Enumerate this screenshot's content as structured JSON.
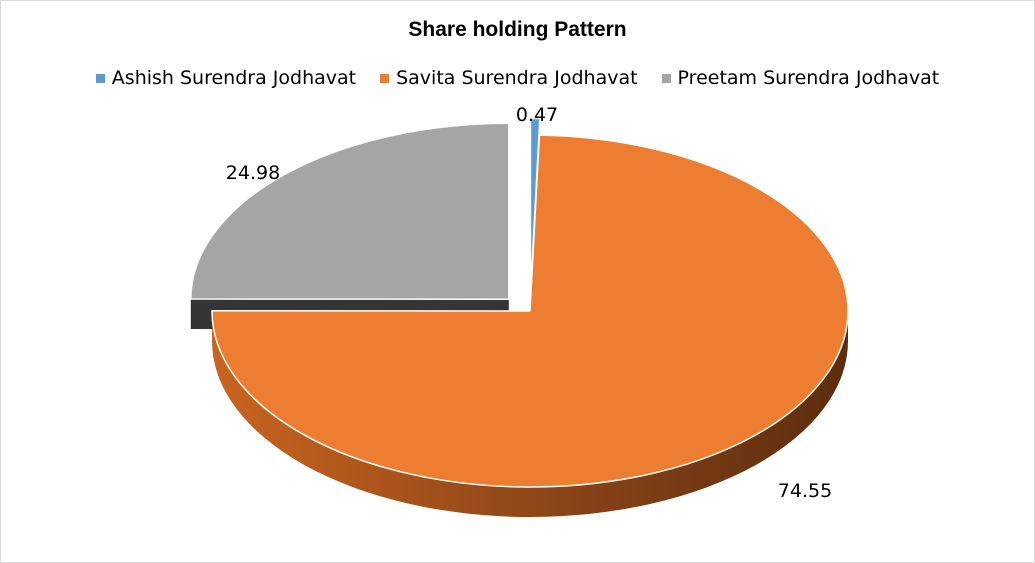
{
  "chart_data": {
    "type": "pie",
    "title": "Share holding Pattern",
    "legend_position": "top",
    "three_d": true,
    "exploded": true,
    "categories": [
      "Ashish Surendra Jodhavat",
      "Savita Surendra Jodhavat",
      "Preetam Surendra Jodhavat"
    ],
    "values": [
      0.47,
      74.55,
      24.98
    ],
    "data_labels": [
      "0.47",
      "74.55",
      "24.98"
    ],
    "colors": [
      "#5B9BD5",
      "#ED7D31",
      "#A5A5A5"
    ]
  }
}
